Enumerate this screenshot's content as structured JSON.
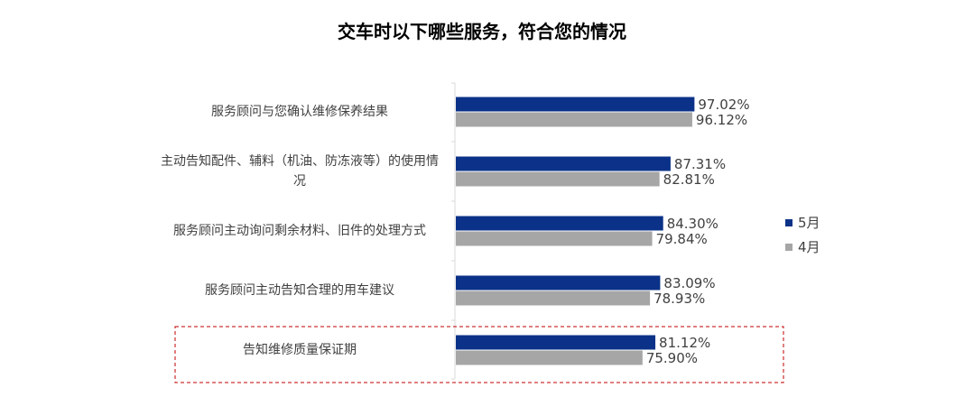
{
  "chart_data": {
    "type": "bar",
    "orientation": "horizontal",
    "title": "交车时以下哪些服务，符合您的情况",
    "categories": [
      "服务顾问与您确认维修保养结果",
      "主动告知配件、辅料（机油、防冻液等）的使用情况",
      "服务顾问主动询问剩余材料、旧件的处理方式",
      "服务顾问主动告知合理的用车建议",
      "告知维修质量保证期"
    ],
    "series": [
      {
        "name": "5月",
        "color": "#0b3288",
        "values": [
          97.02,
          87.31,
          84.3,
          83.09,
          81.12
        ],
        "labels": [
          "97.02%",
          "87.31%",
          "84.30%",
          "83.09%",
          "81.12%"
        ]
      },
      {
        "name": "4月",
        "color": "#a6a6a6",
        "values": [
          96.12,
          82.81,
          79.84,
          78.93,
          75.9
        ],
        "labels": [
          "96.12%",
          "82.81%",
          "79.84%",
          "78.93%",
          "75.90%"
        ]
      }
    ],
    "xlim": [
      0,
      100
    ],
    "grid": false,
    "legend_position": "right",
    "highlight_category": "告知维修质量保证期",
    "highlight_color": "#c00000"
  }
}
